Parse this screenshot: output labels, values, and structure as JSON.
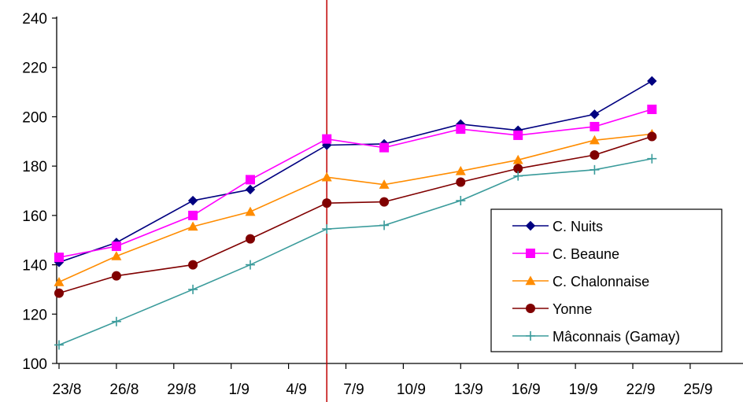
{
  "chart_data": {
    "type": "line",
    "title": "",
    "xlabel": "",
    "ylabel": "",
    "x_ticks": [
      "23/8",
      "26/8",
      "29/8",
      "1/9",
      "4/9",
      "7/9",
      "10/9",
      "13/9",
      "16/9",
      "19/9",
      "22/9",
      "25/9"
    ],
    "y_ticks": [
      100,
      120,
      140,
      160,
      180,
      200,
      220,
      240
    ],
    "ylim": [
      100,
      240
    ],
    "grid": false,
    "legend_position": "bottom-right",
    "reference_line": {
      "x": "6/9",
      "color": "#c00000"
    },
    "series": [
      {
        "name": "C. Nuits",
        "color": "#000080",
        "marker": "diamond",
        "x": [
          "23/8",
          "26/8",
          "30/8",
          "2/9",
          "6/9",
          "9/9",
          "13/9",
          "16/9",
          "20/9",
          "23/9"
        ],
        "values": [
          141,
          149,
          166,
          170.5,
          188.5,
          189,
          197,
          194.5,
          201,
          214.5
        ]
      },
      {
        "name": "C. Beaune",
        "color": "#ff00ff",
        "marker": "square",
        "x": [
          "23/8",
          "26/8",
          "30/8",
          "2/9",
          "6/9",
          "9/9",
          "13/9",
          "16/9",
          "20/9",
          "23/9"
        ],
        "values": [
          143,
          147.5,
          160,
          174.5,
          191,
          187.5,
          195,
          192.5,
          196,
          203
        ]
      },
      {
        "name": "C. Chalonnaise",
        "color": "#ff8c00",
        "marker": "triangle",
        "x": [
          "23/8",
          "26/8",
          "30/8",
          "2/9",
          "6/9",
          "9/9",
          "13/9",
          "16/9",
          "20/9",
          "23/9"
        ],
        "values": [
          133,
          143.5,
          155.5,
          161.5,
          175.5,
          172.5,
          178,
          182.5,
          190.5,
          193
        ]
      },
      {
        "name": "Yonne",
        "color": "#800000",
        "marker": "circle",
        "x": [
          "23/8",
          "26/8",
          "30/8",
          "2/9",
          "6/9",
          "9/9",
          "13/9",
          "16/9",
          "20/9",
          "23/9"
        ],
        "values": [
          128.5,
          135.5,
          140,
          150.5,
          165,
          165.5,
          173.5,
          179,
          184.5,
          192
        ]
      },
      {
        "name": "Mâconnais (Gamay)",
        "color": "#3a9b9b",
        "marker": "plus",
        "x": [
          "23/8",
          "26/8",
          "30/8",
          "2/9",
          "6/9",
          "9/9",
          "13/9",
          "16/9",
          "20/9",
          "23/9"
        ],
        "values": [
          107.5,
          117,
          130,
          140,
          154.5,
          156,
          166,
          176,
          178.5,
          183
        ]
      }
    ]
  }
}
